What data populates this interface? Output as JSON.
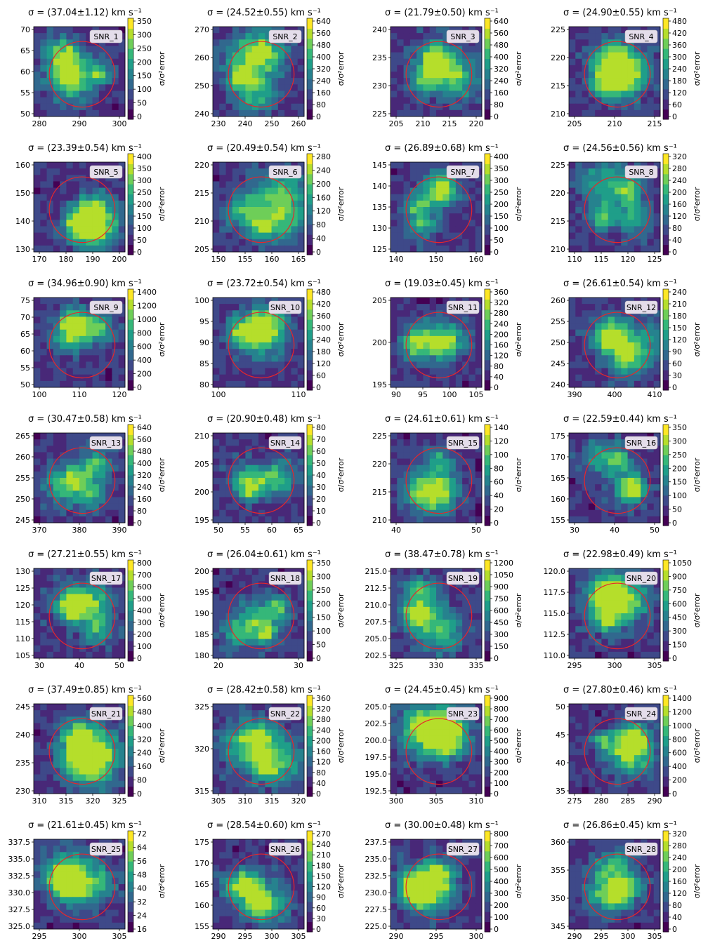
{
  "figure": {
    "colormap": "viridis",
    "circle_color": "#e8262a"
  },
  "chart_data": [
    {
      "type": "heatmap",
      "label": "SNR_1",
      "title": "σ = (37.04±1.12) km s⁻¹",
      "xticks": [
        "280",
        "290",
        "300"
      ],
      "yticks": [
        "70",
        "65",
        "60",
        "55",
        "50"
      ],
      "cbticks": [
        "350",
        "300",
        "250",
        "200",
        "150",
        "100",
        "50",
        "0"
      ],
      "cblabel": "σ/σ²error"
    },
    {
      "type": "heatmap",
      "label": "SNR_2",
      "title": "σ = (24.52±0.55) km s⁻¹",
      "xticks": [
        "230",
        "240",
        "250",
        "260"
      ],
      "yticks": [
        "270",
        "260",
        "250",
        "240"
      ],
      "cbticks": [
        "640",
        "560",
        "480",
        "400",
        "320",
        "240",
        "160",
        "80",
        "0"
      ],
      "cblabel": "σ/σ²error"
    },
    {
      "type": "heatmap",
      "label": "SNR_3",
      "title": "σ = (21.79±0.50) km s⁻¹",
      "xticks": [
        "205",
        "210",
        "215",
        "220"
      ],
      "yticks": [
        "240",
        "235",
        "230",
        "225"
      ],
      "cbticks": [
        "640",
        "560",
        "480",
        "400",
        "320",
        "240",
        "160",
        "80",
        "0"
      ],
      "cblabel": "σ/σ²error"
    },
    {
      "type": "heatmap",
      "label": "SNR_4",
      "title": "σ = (24.90±0.55) km s⁻¹",
      "xticks": [
        "205",
        "210",
        "215"
      ],
      "yticks": [
        "225",
        "220",
        "215",
        "210"
      ],
      "cbticks": [
        "480",
        "420",
        "360",
        "300",
        "240",
        "180",
        "120",
        "60",
        "0"
      ],
      "cblabel": "σ/σ²error"
    },
    {
      "type": "heatmap",
      "label": "SNR_5",
      "title": "σ = (23.39±0.54) km s⁻¹",
      "xticks": [
        "170",
        "180",
        "190",
        "200"
      ],
      "yticks": [
        "160",
        "150",
        "140",
        "130"
      ],
      "cbticks": [
        "400",
        "350",
        "300",
        "250",
        "200",
        "150",
        "100",
        "50",
        "0"
      ],
      "cblabel": "σ/σ²error"
    },
    {
      "type": "heatmap",
      "label": "SNR_6",
      "title": "σ = (20.49±0.54) km s⁻¹",
      "xticks": [
        "150",
        "155",
        "160",
        "165"
      ],
      "yticks": [
        "220",
        "215",
        "210",
        "205"
      ],
      "cbticks": [
        "280",
        "240",
        "200",
        "160",
        "120",
        "80",
        "40",
        "0"
      ],
      "cblabel": "σ/σ²error"
    },
    {
      "type": "heatmap",
      "label": "SNR_7",
      "title": "σ = (26.89±0.68) km s⁻¹",
      "xticks": [
        "140",
        "150",
        "160"
      ],
      "yticks": [
        "145",
        "140",
        "135",
        "130",
        "125"
      ],
      "cbticks": [
        "400",
        "350",
        "300",
        "250",
        "200",
        "150",
        "100",
        "50",
        "0"
      ],
      "cblabel": "σ/σ²error"
    },
    {
      "type": "heatmap",
      "label": "SNR_8",
      "title": "σ = (24.56±0.56) km s⁻¹",
      "xticks": [
        "110",
        "115",
        "120",
        "125"
      ],
      "yticks": [
        "225",
        "220",
        "215",
        "210"
      ],
      "cbticks": [
        "320",
        "280",
        "240",
        "200",
        "160",
        "120",
        "80",
        "40",
        "0"
      ],
      "cblabel": "σ/σ²error"
    },
    {
      "type": "heatmap",
      "label": "SNR_9",
      "title": "σ = (34.96±0.90) km s⁻¹",
      "xticks": [
        "100",
        "110",
        "120"
      ],
      "yticks": [
        "75",
        "70",
        "65",
        "60",
        "55",
        "50"
      ],
      "cbticks": [
        "1400",
        "1200",
        "1000",
        "800",
        "600",
        "400",
        "200",
        "0"
      ],
      "cblabel": "σ/σ²error"
    },
    {
      "type": "heatmap",
      "label": "SNR_10",
      "title": "σ = (23.72±0.54) km s⁻¹",
      "xticks": [
        "100",
        "110"
      ],
      "yticks": [
        "100",
        "95",
        "90",
        "85",
        "80"
      ],
      "cbticks": [
        "480",
        "420",
        "360",
        "300",
        "240",
        "180",
        "120",
        "60",
        "0"
      ],
      "cblabel": "σ/σ²error"
    },
    {
      "type": "heatmap",
      "label": "SNR_11",
      "title": "σ = (19.03±0.45) km s⁻¹",
      "xticks": [
        "90",
        "95",
        "100",
        "105"
      ],
      "yticks": [
        "205",
        "200",
        "195"
      ],
      "cbticks": [
        "360",
        "320",
        "280",
        "240",
        "200",
        "160",
        "120",
        "80",
        "40",
        "0"
      ],
      "cblabel": "σ/σ²error"
    },
    {
      "type": "heatmap",
      "label": "SNR_12",
      "title": "σ = (26.61±0.54) km s⁻¹",
      "xticks": [
        "390",
        "400",
        "410"
      ],
      "yticks": [
        "260",
        "255",
        "250",
        "245",
        "240"
      ],
      "cbticks": [
        "240",
        "210",
        "180",
        "150",
        "120",
        "90",
        "60",
        "30",
        "0"
      ],
      "cblabel": "σ/σ²error"
    },
    {
      "type": "heatmap",
      "label": "SNR_13",
      "title": "σ = (30.47±0.58) km s⁻¹",
      "xticks": [
        "370",
        "380",
        "390"
      ],
      "yticks": [
        "265",
        "260",
        "255",
        "250",
        "245"
      ],
      "cbticks": [
        "640",
        "560",
        "480",
        "400",
        "320",
        "240",
        "160",
        "80",
        "0"
      ],
      "cblabel": "σ/σ²error"
    },
    {
      "type": "heatmap",
      "label": "SNR_14",
      "title": "σ = (20.90±0.48) km s⁻¹",
      "xticks": [
        "50",
        "55",
        "60",
        "65"
      ],
      "yticks": [
        "210",
        "205",
        "200",
        "195"
      ],
      "cbticks": [
        "80",
        "70",
        "60",
        "50",
        "40",
        "30",
        "20",
        "10",
        "0"
      ],
      "cblabel": "σ/σ²error"
    },
    {
      "type": "heatmap",
      "label": "SNR_15",
      "title": "σ = (24.61±0.61) km s⁻¹",
      "xticks": [
        "40",
        "50"
      ],
      "yticks": [
        "225",
        "220",
        "215",
        "210"
      ],
      "cbticks": [
        "140",
        "120",
        "100",
        "80",
        "60",
        "40",
        "20",
        "0"
      ],
      "cblabel": "σ/σ²error"
    },
    {
      "type": "heatmap",
      "label": "SNR_16",
      "title": "σ = (22.59±0.44) km s⁻¹",
      "xticks": [
        "30",
        "40",
        "50"
      ],
      "yticks": [
        "175",
        "170",
        "165",
        "160",
        "155"
      ],
      "cbticks": [
        "350",
        "300",
        "250",
        "200",
        "150",
        "100",
        "50",
        "0"
      ],
      "cblabel": "σ/σ²error"
    },
    {
      "type": "heatmap",
      "label": "SNR_17",
      "title": "σ = (27.21±0.55) km s⁻¹",
      "xticks": [
        "30",
        "40",
        "50"
      ],
      "yticks": [
        "130",
        "125",
        "120",
        "115",
        "110",
        "105"
      ],
      "cbticks": [
        "800",
        "700",
        "600",
        "500",
        "400",
        "300",
        "200",
        "100",
        "0"
      ],
      "cblabel": "σ/σ²error"
    },
    {
      "type": "heatmap",
      "label": "SNR_18",
      "title": "σ = (26.04±0.61) km s⁻¹",
      "xticks": [
        "20",
        "30"
      ],
      "yticks": [
        "200",
        "195",
        "190",
        "185",
        "180"
      ],
      "cbticks": [
        "350",
        "300",
        "250",
        "200",
        "150",
        "100",
        "50",
        "0"
      ],
      "cblabel": "σ/σ²error"
    },
    {
      "type": "heatmap",
      "label": "SNR_19",
      "title": "σ = (38.47±0.78) km s⁻¹",
      "xticks": [
        "325",
        "330",
        "335"
      ],
      "yticks": [
        "215.0",
        "212.5",
        "210.0",
        "207.5",
        "205.0",
        "202.5"
      ],
      "cbticks": [
        "1200",
        "1050",
        "900",
        "750",
        "600",
        "450",
        "300",
        "150",
        "0"
      ],
      "cblabel": "σ/σ²error"
    },
    {
      "type": "heatmap",
      "label": "SNR_20",
      "title": "σ = (22.98±0.49) km s⁻¹",
      "xticks": [
        "295",
        "300",
        "305"
      ],
      "yticks": [
        "120.0",
        "117.5",
        "115.0",
        "112.5",
        "110.0"
      ],
      "cbticks": [
        "1050",
        "900",
        "750",
        "600",
        "450",
        "300",
        "150",
        "0"
      ],
      "cblabel": "σ/σ²error"
    },
    {
      "type": "heatmap",
      "label": "SNR_21",
      "title": "σ = (37.49±0.85) km s⁻¹",
      "xticks": [
        "310",
        "315",
        "320",
        "325"
      ],
      "yticks": [
        "245",
        "240",
        "235",
        "230"
      ],
      "cbticks": [
        "560",
        "480",
        "400",
        "320",
        "240",
        "160",
        "80",
        "0"
      ],
      "cblabel": "σ/σ²error"
    },
    {
      "type": "heatmap",
      "label": "SNR_22",
      "title": "σ = (28.42±0.58) km s⁻¹",
      "xticks": [
        "305",
        "310",
        "315",
        "320"
      ],
      "yticks": [
        "325",
        "320",
        "315"
      ],
      "cbticks": [
        "360",
        "320",
        "280",
        "240",
        "200",
        "160",
        "120",
        "80",
        "40",
        "0"
      ],
      "cblabel": "σ/σ²error"
    },
    {
      "type": "heatmap",
      "label": "SNR_23",
      "title": "σ = (24.45±0.45) km s⁻¹",
      "xticks": [
        "300",
        "305",
        "310"
      ],
      "yticks": [
        "205.0",
        "202.5",
        "200.0",
        "197.5",
        "195.0",
        "192.5"
      ],
      "cbticks": [
        "900",
        "800",
        "700",
        "600",
        "500",
        "400",
        "300",
        "200",
        "100",
        "0"
      ],
      "cblabel": "σ/σ²error"
    },
    {
      "type": "heatmap",
      "label": "SNR_24",
      "title": "σ = (27.80±0.46) km s⁻¹",
      "xticks": [
        "275",
        "280",
        "285",
        "290"
      ],
      "yticks": [
        "50",
        "45",
        "40",
        "35"
      ],
      "cbticks": [
        "1400",
        "1200",
        "1000",
        "800",
        "600",
        "400",
        "200",
        "0"
      ],
      "cblabel": "σ/σ²error"
    },
    {
      "type": "heatmap",
      "label": "SNR_25",
      "title": "σ = (21.61±0.45) km s⁻¹",
      "xticks": [
        "295",
        "300",
        "305"
      ],
      "yticks": [
        "337.5",
        "335.0",
        "332.5",
        "330.0",
        "327.5",
        "325.0"
      ],
      "cbticks": [
        "72",
        "64",
        "56",
        "48",
        "40",
        "32",
        "24",
        "16"
      ],
      "cblabel": "σ/σ²error"
    },
    {
      "type": "heatmap",
      "label": "SNR_26",
      "title": "σ = (28.54±0.60) km s⁻¹",
      "xticks": [
        "290",
        "295",
        "300",
        "305"
      ],
      "yticks": [
        "175",
        "170",
        "165",
        "160",
        "155"
      ],
      "cbticks": [
        "270",
        "240",
        "210",
        "180",
        "150",
        "120",
        "90",
        "60",
        "30",
        "0"
      ],
      "cblabel": "σ/σ²error"
    },
    {
      "type": "heatmap",
      "label": "SNR_27",
      "title": "σ = (30.00±0.48) km s⁻¹",
      "xticks": [
        "290",
        "295",
        "300"
      ],
      "yticks": [
        "237.5",
        "235.0",
        "232.5",
        "230.0",
        "227.5",
        "225.0"
      ],
      "cbticks": [
        "800",
        "700",
        "600",
        "500",
        "400",
        "300",
        "200",
        "100",
        "0"
      ],
      "cblabel": "σ/σ²error"
    },
    {
      "type": "heatmap",
      "label": "SNR_28",
      "title": "σ = (26.86±0.45) km s⁻¹",
      "xticks": [
        "290",
        "295",
        "300",
        "305"
      ],
      "yticks": [
        "360",
        "355",
        "350",
        "345"
      ],
      "cbticks": [
        "320",
        "280",
        "240",
        "200",
        "160",
        "120",
        "80",
        "40",
        "0"
      ],
      "cblabel": "σ/σ²error"
    }
  ]
}
